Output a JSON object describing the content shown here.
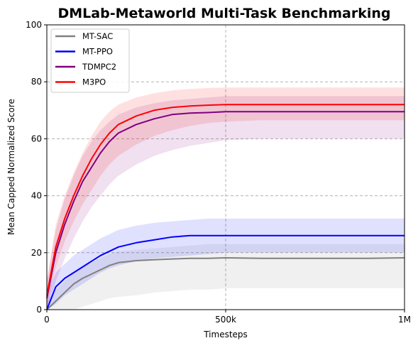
{
  "chart_data": {
    "type": "line",
    "title": "DMLab-Metaworld Multi-Task Benchmarking",
    "xlabel": "Timesteps",
    "ylabel": "Mean Capped Normalized Score",
    "xlim": [
      0,
      1000000
    ],
    "ylim": [
      0,
      100
    ],
    "x_ticks": [
      {
        "value": 0,
        "label": "0"
      },
      {
        "value": 500000,
        "label": "500k"
      },
      {
        "value": 1000000,
        "label": "1M"
      }
    ],
    "y_ticks": [
      {
        "value": 0,
        "label": "0"
      },
      {
        "value": 20,
        "label": "20"
      },
      {
        "value": 40,
        "label": "40"
      },
      {
        "value": 60,
        "label": "60"
      },
      {
        "value": 80,
        "label": "80"
      },
      {
        "value": 100,
        "label": "100"
      }
    ],
    "grid": "dashed, at 500k and at y=20, 40, 60, 80",
    "legend_position": "top-left",
    "x": [
      0,
      25000,
      50000,
      75000,
      100000,
      125000,
      150000,
      175000,
      200000,
      250000,
      300000,
      350000,
      400000,
      450000,
      500000,
      600000,
      700000,
      800000,
      900000,
      1000000
    ],
    "series": [
      {
        "name": "MT-SAC",
        "color": "#808080",
        "values": [
          0,
          3,
          6,
          9,
          11,
          12.5,
          14,
          15.5,
          16.5,
          17.2,
          17.5,
          17.8,
          18,
          18,
          18.2,
          18,
          18,
          18,
          18,
          18.2
        ],
        "lower": [
          0,
          0,
          0,
          0,
          1,
          2,
          3,
          4,
          4.5,
          5,
          6,
          6.5,
          7,
          7,
          7.5,
          7.5,
          7.5,
          7.5,
          7.5,
          7.5
        ],
        "upper": [
          3,
          7,
          10,
          13,
          15,
          16.5,
          18,
          19.5,
          20.5,
          21,
          21.5,
          22,
          22.5,
          23,
          23,
          23,
          23,
          23,
          23,
          23
        ]
      },
      {
        "name": "MT-PPO",
        "color": "#0000ff",
        "values": [
          0,
          8,
          11,
          13,
          15,
          17,
          19,
          20.5,
          22,
          23.5,
          24.5,
          25.5,
          26,
          26,
          26,
          26,
          26,
          26,
          26,
          26
        ],
        "lower": [
          0,
          2,
          5,
          7,
          9,
          11,
          13,
          14.5,
          15.5,
          17,
          18,
          18.5,
          19,
          19.5,
          20,
          20,
          20,
          20,
          20,
          20
        ],
        "upper": [
          5,
          13,
          16,
          19,
          21,
          23,
          25,
          26.5,
          28,
          29.5,
          30.5,
          31,
          31.5,
          32,
          32,
          32,
          32,
          32,
          32,
          32
        ]
      },
      {
        "name": "TDMPC2",
        "color": "#800080",
        "values": [
          4,
          20,
          30,
          38,
          45,
          50,
          55,
          59,
          62,
          65,
          67,
          68.5,
          69,
          69.2,
          69.5,
          69.5,
          69.5,
          69.5,
          69.5,
          69.5
        ],
        "lower": [
          0,
          10,
          18,
          25,
          31,
          36,
          40,
          44,
          47,
          51,
          54,
          56,
          57.5,
          58.5,
          59.5,
          60,
          60,
          60,
          60,
          60
        ],
        "upper": [
          10,
          28,
          39,
          47,
          54,
          59,
          63,
          66,
          68.5,
          71,
          72.5,
          73.5,
          74,
          74.5,
          75,
          75,
          75,
          75,
          75,
          75
        ]
      },
      {
        "name": "M3PO",
        "color": "#ff0000",
        "values": [
          5,
          22,
          32,
          40,
          47,
          53,
          58,
          62,
          65,
          68,
          70,
          71,
          71.5,
          71.8,
          72,
          72,
          72,
          72,
          72,
          72
        ],
        "lower": [
          1,
          15,
          24,
          31,
          37,
          42,
          47,
          51,
          54,
          58,
          61,
          63,
          64.5,
          65.5,
          66,
          66.5,
          66.5,
          66.5,
          66.5,
          66.5
        ],
        "upper": [
          10,
          30,
          40,
          48,
          55,
          61,
          66,
          69.5,
          72,
          74.5,
          76,
          77,
          77.5,
          77.8,
          78,
          78,
          78,
          78,
          78,
          78
        ]
      }
    ]
  }
}
